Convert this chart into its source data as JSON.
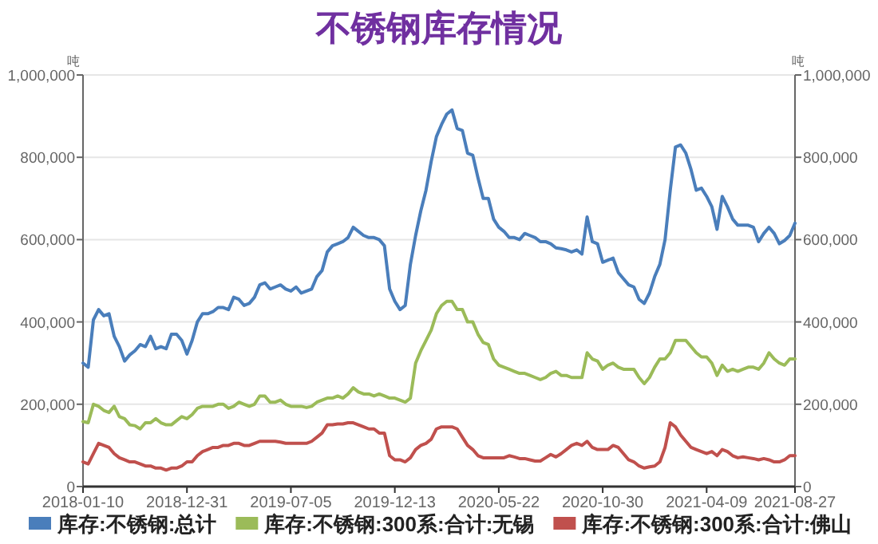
{
  "chart_data": {
    "type": "line",
    "title": "不锈钢库存情况",
    "ylabel": "吨",
    "y2label": "吨",
    "categories": [
      "2018-01-10",
      null,
      null,
      null,
      null,
      null,
      null,
      null,
      null,
      null,
      null,
      null,
      null,
      null,
      null,
      null,
      null,
      null,
      null,
      null,
      "2018-12-31",
      null,
      null,
      null,
      null,
      null,
      null,
      null,
      null,
      null,
      null,
      null,
      null,
      null,
      null,
      null,
      null,
      null,
      null,
      null,
      "2019-07-05",
      null,
      null,
      null,
      null,
      null,
      null,
      null,
      null,
      null,
      null,
      null,
      null,
      null,
      null,
      null,
      null,
      null,
      null,
      null,
      "2019-12-13",
      null,
      null,
      null,
      null,
      null,
      null,
      null,
      null,
      null,
      null,
      null,
      null,
      null,
      null,
      null,
      null,
      null,
      null,
      null,
      "2020-05-22",
      null,
      null,
      null,
      null,
      null,
      null,
      null,
      null,
      null,
      null,
      null,
      null,
      null,
      null,
      null,
      null,
      null,
      null,
      null,
      "2020-10-30",
      null,
      null,
      null,
      null,
      null,
      null,
      null,
      null,
      null,
      null,
      null,
      null,
      null,
      null,
      null,
      null,
      null,
      null,
      null,
      "2021-04-09",
      null,
      null,
      null,
      null,
      null,
      null,
      null,
      null,
      null,
      null,
      null,
      null,
      null,
      null,
      null,
      null,
      "2021-08-27"
    ],
    "series": [
      {
        "name": "库存:不锈钢:总计",
        "color": "#4a7ebb",
        "values": [
          300000,
          290000,
          405000,
          430000,
          415000,
          420000,
          365000,
          340000,
          305000,
          320000,
          330000,
          345000,
          340000,
          365000,
          335000,
          340000,
          335000,
          370000,
          370000,
          355000,
          322000,
          355000,
          400000,
          420000,
          420000,
          425000,
          435000,
          435000,
          430000,
          460000,
          455000,
          440000,
          445000,
          460000,
          490000,
          495000,
          480000,
          485000,
          490000,
          480000,
          475000,
          485000,
          470000,
          475000,
          480000,
          510000,
          525000,
          570000,
          585000,
          590000,
          595000,
          605000,
          630000,
          620000,
          610000,
          605000,
          605000,
          600000,
          585000,
          480000,
          450000,
          430000,
          440000,
          540000,
          610000,
          670000,
          720000,
          790000,
          850000,
          880000,
          905000,
          915000,
          870000,
          865000,
          810000,
          805000,
          750000,
          700000,
          700000,
          650000,
          630000,
          620000,
          605000,
          605000,
          600000,
          615000,
          610000,
          605000,
          595000,
          595000,
          590000,
          580000,
          578000,
          575000,
          570000,
          575000,
          565000,
          655000,
          595000,
          590000,
          545000,
          550000,
          555000,
          520000,
          505000,
          490000,
          485000,
          455000,
          445000,
          470000,
          510000,
          540000,
          600000,
          720000,
          825000,
          830000,
          810000,
          770000,
          720000,
          725000,
          705000,
          680000,
          625000,
          705000,
          680000,
          650000,
          635000,
          635000,
          635000,
          630000,
          595000,
          615000,
          630000,
          615000,
          590000,
          598000,
          610000,
          640000
        ]
      },
      {
        "name": "库存:不锈钢:300系:合计:无锡",
        "color": "#9bbb59",
        "values": [
          158000,
          155000,
          200000,
          195000,
          185000,
          180000,
          195000,
          170000,
          165000,
          150000,
          148000,
          140000,
          155000,
          155000,
          165000,
          155000,
          150000,
          150000,
          160000,
          170000,
          165000,
          175000,
          190000,
          195000,
          195000,
          195000,
          200000,
          200000,
          190000,
          195000,
          205000,
          200000,
          195000,
          200000,
          220000,
          220000,
          205000,
          205000,
          210000,
          200000,
          195000,
          195000,
          195000,
          192000,
          195000,
          205000,
          210000,
          215000,
          215000,
          220000,
          215000,
          225000,
          240000,
          230000,
          225000,
          225000,
          220000,
          225000,
          220000,
          215000,
          215000,
          210000,
          205000,
          215000,
          300000,
          330000,
          355000,
          380000,
          420000,
          440000,
          450000,
          450000,
          430000,
          430000,
          400000,
          400000,
          370000,
          350000,
          345000,
          310000,
          295000,
          290000,
          285000,
          280000,
          275000,
          275000,
          270000,
          265000,
          260000,
          265000,
          275000,
          280000,
          270000,
          270000,
          265000,
          265000,
          265000,
          325000,
          310000,
          305000,
          285000,
          295000,
          300000,
          290000,
          285000,
          285000,
          285000,
          265000,
          250000,
          265000,
          290000,
          310000,
          310000,
          325000,
          355000,
          355000,
          355000,
          340000,
          325000,
          315000,
          315000,
          300000,
          270000,
          295000,
          280000,
          285000,
          280000,
          285000,
          290000,
          290000,
          285000,
          300000,
          325000,
          310000,
          300000,
          295000,
          310000,
          310000
        ]
      },
      {
        "name": "库存:不锈钢:300系:合计:佛山",
        "color": "#c0504d",
        "values": [
          60000,
          55000,
          80000,
          105000,
          100000,
          95000,
          80000,
          70000,
          65000,
          60000,
          60000,
          55000,
          50000,
          50000,
          45000,
          45000,
          40000,
          45000,
          45000,
          50000,
          60000,
          60000,
          75000,
          85000,
          90000,
          95000,
          95000,
          100000,
          100000,
          105000,
          105000,
          100000,
          100000,
          105000,
          110000,
          110000,
          110000,
          110000,
          108000,
          105000,
          105000,
          105000,
          105000,
          105000,
          110000,
          120000,
          130000,
          150000,
          150000,
          152000,
          152000,
          155000,
          155000,
          150000,
          145000,
          140000,
          140000,
          130000,
          130000,
          75000,
          65000,
          65000,
          60000,
          70000,
          90000,
          100000,
          105000,
          115000,
          140000,
          145000,
          145000,
          145000,
          140000,
          120000,
          100000,
          90000,
          75000,
          70000,
          70000,
          70000,
          70000,
          70000,
          75000,
          72000,
          68000,
          68000,
          65000,
          62000,
          62000,
          70000,
          78000,
          72000,
          80000,
          90000,
          100000,
          105000,
          100000,
          110000,
          95000,
          90000,
          90000,
          90000,
          100000,
          95000,
          80000,
          65000,
          60000,
          50000,
          45000,
          48000,
          50000,
          60000,
          95000,
          155000,
          145000,
          125000,
          110000,
          95000,
          90000,
          85000,
          80000,
          85000,
          75000,
          90000,
          85000,
          75000,
          70000,
          72000,
          70000,
          68000,
          65000,
          68000,
          65000,
          60000,
          60000,
          65000,
          75000,
          75000
        ]
      }
    ],
    "ylim": [
      0,
      1000000
    ],
    "yticks": [
      0,
      {
        "value": 200000,
        "label": "200,000"
      },
      {
        "value": 400000,
        "label": "400,000"
      },
      {
        "value": 600000,
        "label": "600,000"
      },
      {
        "value": 800000,
        "label": "800,000"
      },
      {
        "value": 1000000,
        "label": "1,000,000"
      }
    ],
    "y2lim": [
      0,
      1000000
    ],
    "y2ticks": [
      0,
      {
        "value": 200000,
        "label": "200,000"
      },
      {
        "value": 400000,
        "label": "400,000"
      },
      {
        "value": 600000,
        "label": "600,000"
      },
      {
        "value": 800000,
        "label": "800,000"
      },
      {
        "value": 1000000,
        "label": "1,000,000"
      }
    ],
    "grid": "y",
    "legend": "bottom",
    "marker": "none",
    "line_style": "solid"
  }
}
